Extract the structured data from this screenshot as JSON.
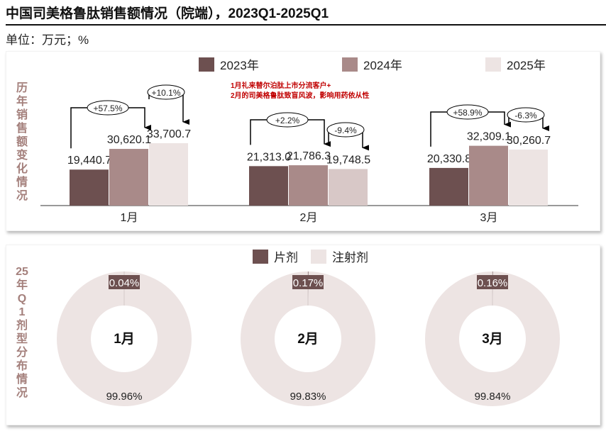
{
  "title": "中国司美格鲁肽销售额情况（院端），2023Q1-2025Q1",
  "unit": "单位：万元；%",
  "colors": {
    "y2023": "#6d5050",
    "y2024": "#a98a89",
    "y2025": "#ede4e3",
    "y2025_feb": "#d8c8c7",
    "label": "#a4807c",
    "note": "#c00000"
  },
  "chart_data": [
    {
      "type": "bar",
      "panel_label": "历年销售额变化情况",
      "categories": [
        "1月",
        "2月",
        "3月"
      ],
      "series": [
        {
          "name": "2023年",
          "values": [
            19440.7,
            21313.0,
            20330.8
          ],
          "labels": [
            "19,440.7",
            "21,313.0",
            "20,330.8"
          ]
        },
        {
          "name": "2024年",
          "values": [
            30620.1,
            21786.3,
            32309.1
          ],
          "labels": [
            "30,620.1",
            "21,786.3",
            "32,309.1"
          ]
        },
        {
          "name": "2025年",
          "values": [
            33700.7,
            19748.5,
            30260.7
          ],
          "labels": [
            "33,700.7",
            "19,748.5",
            "30,260.7"
          ]
        }
      ],
      "growth": [
        [
          "+57.5%",
          "+10.1%"
        ],
        [
          "+2.2%",
          "-9.4%"
        ],
        [
          "+58.9%",
          "-6.3%"
        ]
      ],
      "annotation": [
        "1月礼来替尔泊肽上市分流客户+",
        "2月的司美格鲁肽致盲风波，影响用药依从性"
      ],
      "legend": "top-center"
    },
    {
      "type": "pie",
      "panel_label": "25年Q1剂型分布情况",
      "legend": [
        "片剂",
        "注射剂"
      ],
      "donuts": [
        {
          "center": "1月",
          "values": [
            0.04,
            99.96
          ],
          "labels": [
            "0.04%",
            "99.96%"
          ]
        },
        {
          "center": "2月",
          "values": [
            0.17,
            99.83
          ],
          "labels": [
            "0.17%",
            "99.83%"
          ]
        },
        {
          "center": "3月",
          "values": [
            0.16,
            99.84
          ],
          "labels": [
            "0.16%",
            "99.84%"
          ]
        }
      ]
    }
  ]
}
